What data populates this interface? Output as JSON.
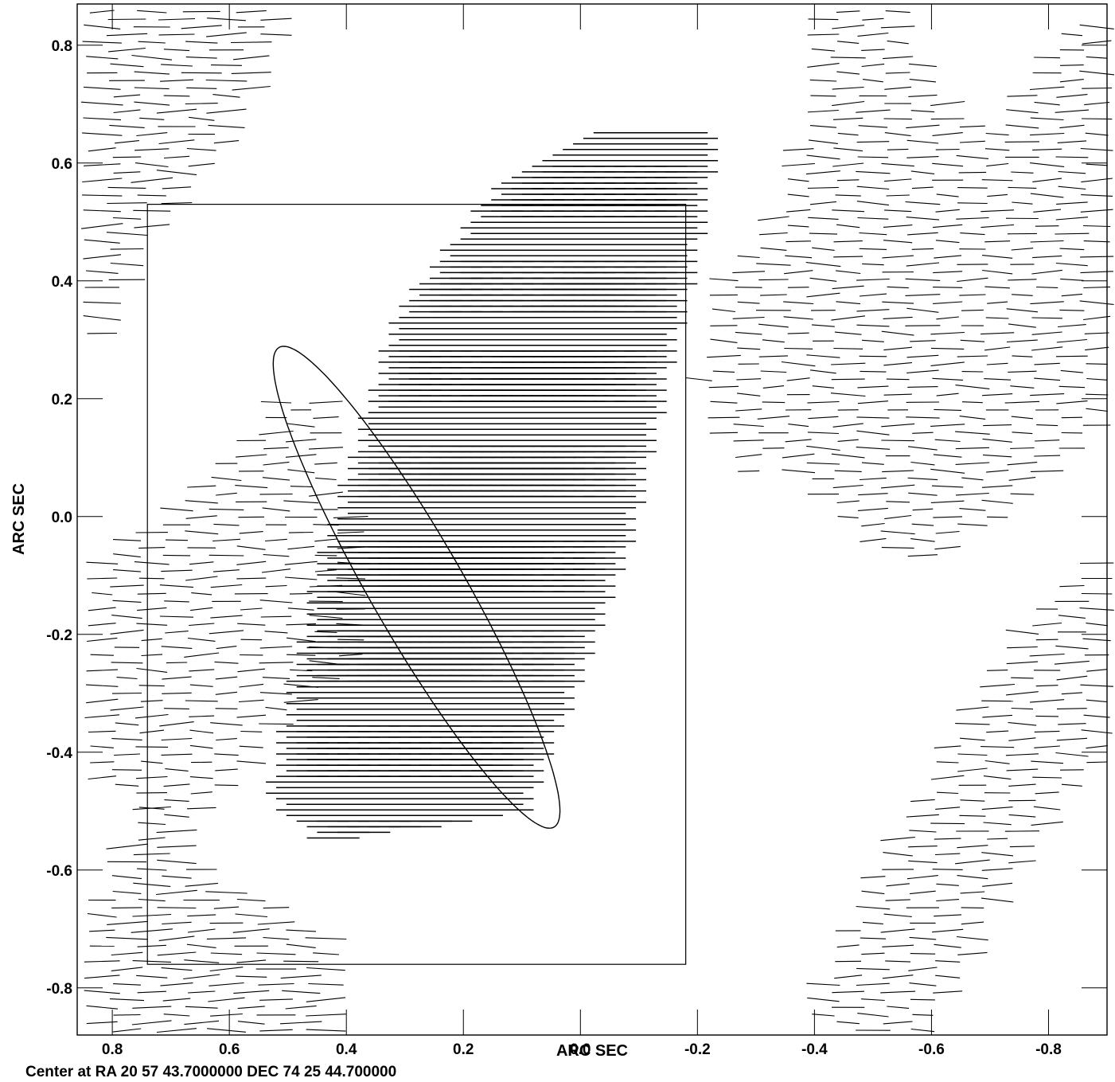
{
  "chart_data": {
    "type": "vector-field",
    "title": "",
    "xlabel": "ARC SEC",
    "ylabel": "ARC SEC",
    "x_reversed": true,
    "xlim": [
      0.86,
      -0.9
    ],
    "ylim": [
      -0.88,
      0.87
    ],
    "x_ticks": [
      0.8,
      0.6,
      0.4,
      0.2,
      0.0,
      -0.2,
      -0.4,
      -0.6,
      -0.8
    ],
    "x_tick_labels": [
      "0.8",
      "0.6",
      "0.4",
      "0.2",
      "0.0",
      "-0.2",
      "-0.4",
      "-0.6",
      "-0.8"
    ],
    "y_ticks": [
      0.8,
      0.6,
      0.4,
      0.2,
      0.0,
      -0.2,
      -0.4,
      -0.6,
      -0.8
    ],
    "y_tick_labels": [
      "0.8",
      "0.6",
      "0.4",
      "0.2",
      "0.0",
      "-0.2",
      "-0.4",
      "-0.6",
      "-0.8"
    ],
    "vector_angle_deg": 0,
    "vector_regions": [
      {
        "name": "central source",
        "density": "dense",
        "length": 0.09,
        "polygon": [
          [
            0.42,
            -0.55
          ],
          [
            0.12,
            -0.5
          ],
          [
            -0.05,
            -0.05
          ],
          [
            -0.18,
            0.5
          ],
          [
            -0.2,
            0.65
          ],
          [
            -0.08,
            0.66
          ],
          [
            0.12,
            0.55
          ],
          [
            0.28,
            0.35
          ],
          [
            0.42,
            -0.1
          ],
          [
            0.5,
            -0.48
          ]
        ]
      },
      {
        "name": "core concentration",
        "density": "dense",
        "length": 0.06,
        "polygon": [
          [
            0.38,
            -0.3
          ],
          [
            0.2,
            -0.32
          ],
          [
            0.02,
            0.05
          ],
          [
            -0.08,
            0.4
          ],
          [
            0.0,
            0.43
          ],
          [
            0.16,
            0.25
          ],
          [
            0.32,
            -0.05
          ]
        ]
      },
      {
        "name": "upper-left sidelobe",
        "density": "sparse",
        "length": 0.06,
        "polygon": [
          [
            0.86,
            0.86
          ],
          [
            0.5,
            0.86
          ],
          [
            0.6,
            0.62
          ],
          [
            0.72,
            0.5
          ],
          [
            0.8,
            0.35
          ],
          [
            0.86,
            0.15
          ]
        ]
      },
      {
        "name": "upper-right sidelobe",
        "density": "sparse",
        "length": 0.05,
        "polygon": [
          [
            -0.2,
            0.22
          ],
          [
            -0.22,
            0.4
          ],
          [
            -0.3,
            0.45
          ],
          [
            -0.38,
            0.66
          ],
          [
            -0.4,
            0.86
          ],
          [
            -0.55,
            0.86
          ],
          [
            -0.6,
            0.75
          ],
          [
            -0.7,
            0.63
          ],
          [
            -0.82,
            0.82
          ],
          [
            -0.9,
            0.86
          ],
          [
            -0.9,
            0.15
          ],
          [
            -0.72,
            0.0
          ],
          [
            -0.6,
            -0.07
          ],
          [
            -0.52,
            -0.07
          ],
          [
            -0.43,
            0.0
          ],
          [
            -0.32,
            0.1
          ],
          [
            -0.25,
            0.05
          ],
          [
            -0.24,
            0.2
          ]
        ]
      },
      {
        "name": "left middle sidelobe",
        "density": "sparse",
        "length": 0.05,
        "polygon": [
          [
            0.86,
            -0.42
          ],
          [
            0.86,
            -0.1
          ],
          [
            0.65,
            0.05
          ],
          [
            0.52,
            0.2
          ],
          [
            0.42,
            0.2
          ],
          [
            0.4,
            0.05
          ],
          [
            0.35,
            -0.2
          ],
          [
            0.5,
            -0.35
          ],
          [
            0.62,
            -0.5
          ],
          [
            0.75,
            -0.5
          ]
        ]
      },
      {
        "name": "lower-left sidelobe",
        "density": "sparse",
        "length": 0.06,
        "polygon": [
          [
            0.86,
            -0.88
          ],
          [
            0.4,
            -0.88
          ],
          [
            0.43,
            -0.72
          ],
          [
            0.5,
            -0.66
          ],
          [
            0.62,
            -0.62
          ],
          [
            0.72,
            -0.45
          ],
          [
            0.8,
            -0.6
          ],
          [
            0.86,
            -0.75
          ]
        ]
      },
      {
        "name": "lower-right sidelobe",
        "density": "sparse",
        "length": 0.05,
        "polygon": [
          [
            -0.42,
            -0.88
          ],
          [
            -0.6,
            -0.88
          ],
          [
            -0.78,
            -0.55
          ],
          [
            -0.9,
            -0.4
          ],
          [
            -0.9,
            -0.05
          ],
          [
            -0.78,
            -0.15
          ],
          [
            -0.65,
            -0.35
          ],
          [
            -0.5,
            -0.6
          ],
          [
            -0.4,
            -0.82
          ]
        ]
      }
    ],
    "beam_ellipse": {
      "center": [
        0.28,
        -0.12
      ],
      "semi_major": 0.47,
      "semi_minor": 0.08,
      "position_angle_deg": 30
    },
    "box": {
      "x": [
        0.74,
        -0.18
      ],
      "y": [
        -0.76,
        0.53
      ]
    },
    "footnote": "Center at RA 20 57 43.7000000  DEC 74 25 44.700000"
  }
}
